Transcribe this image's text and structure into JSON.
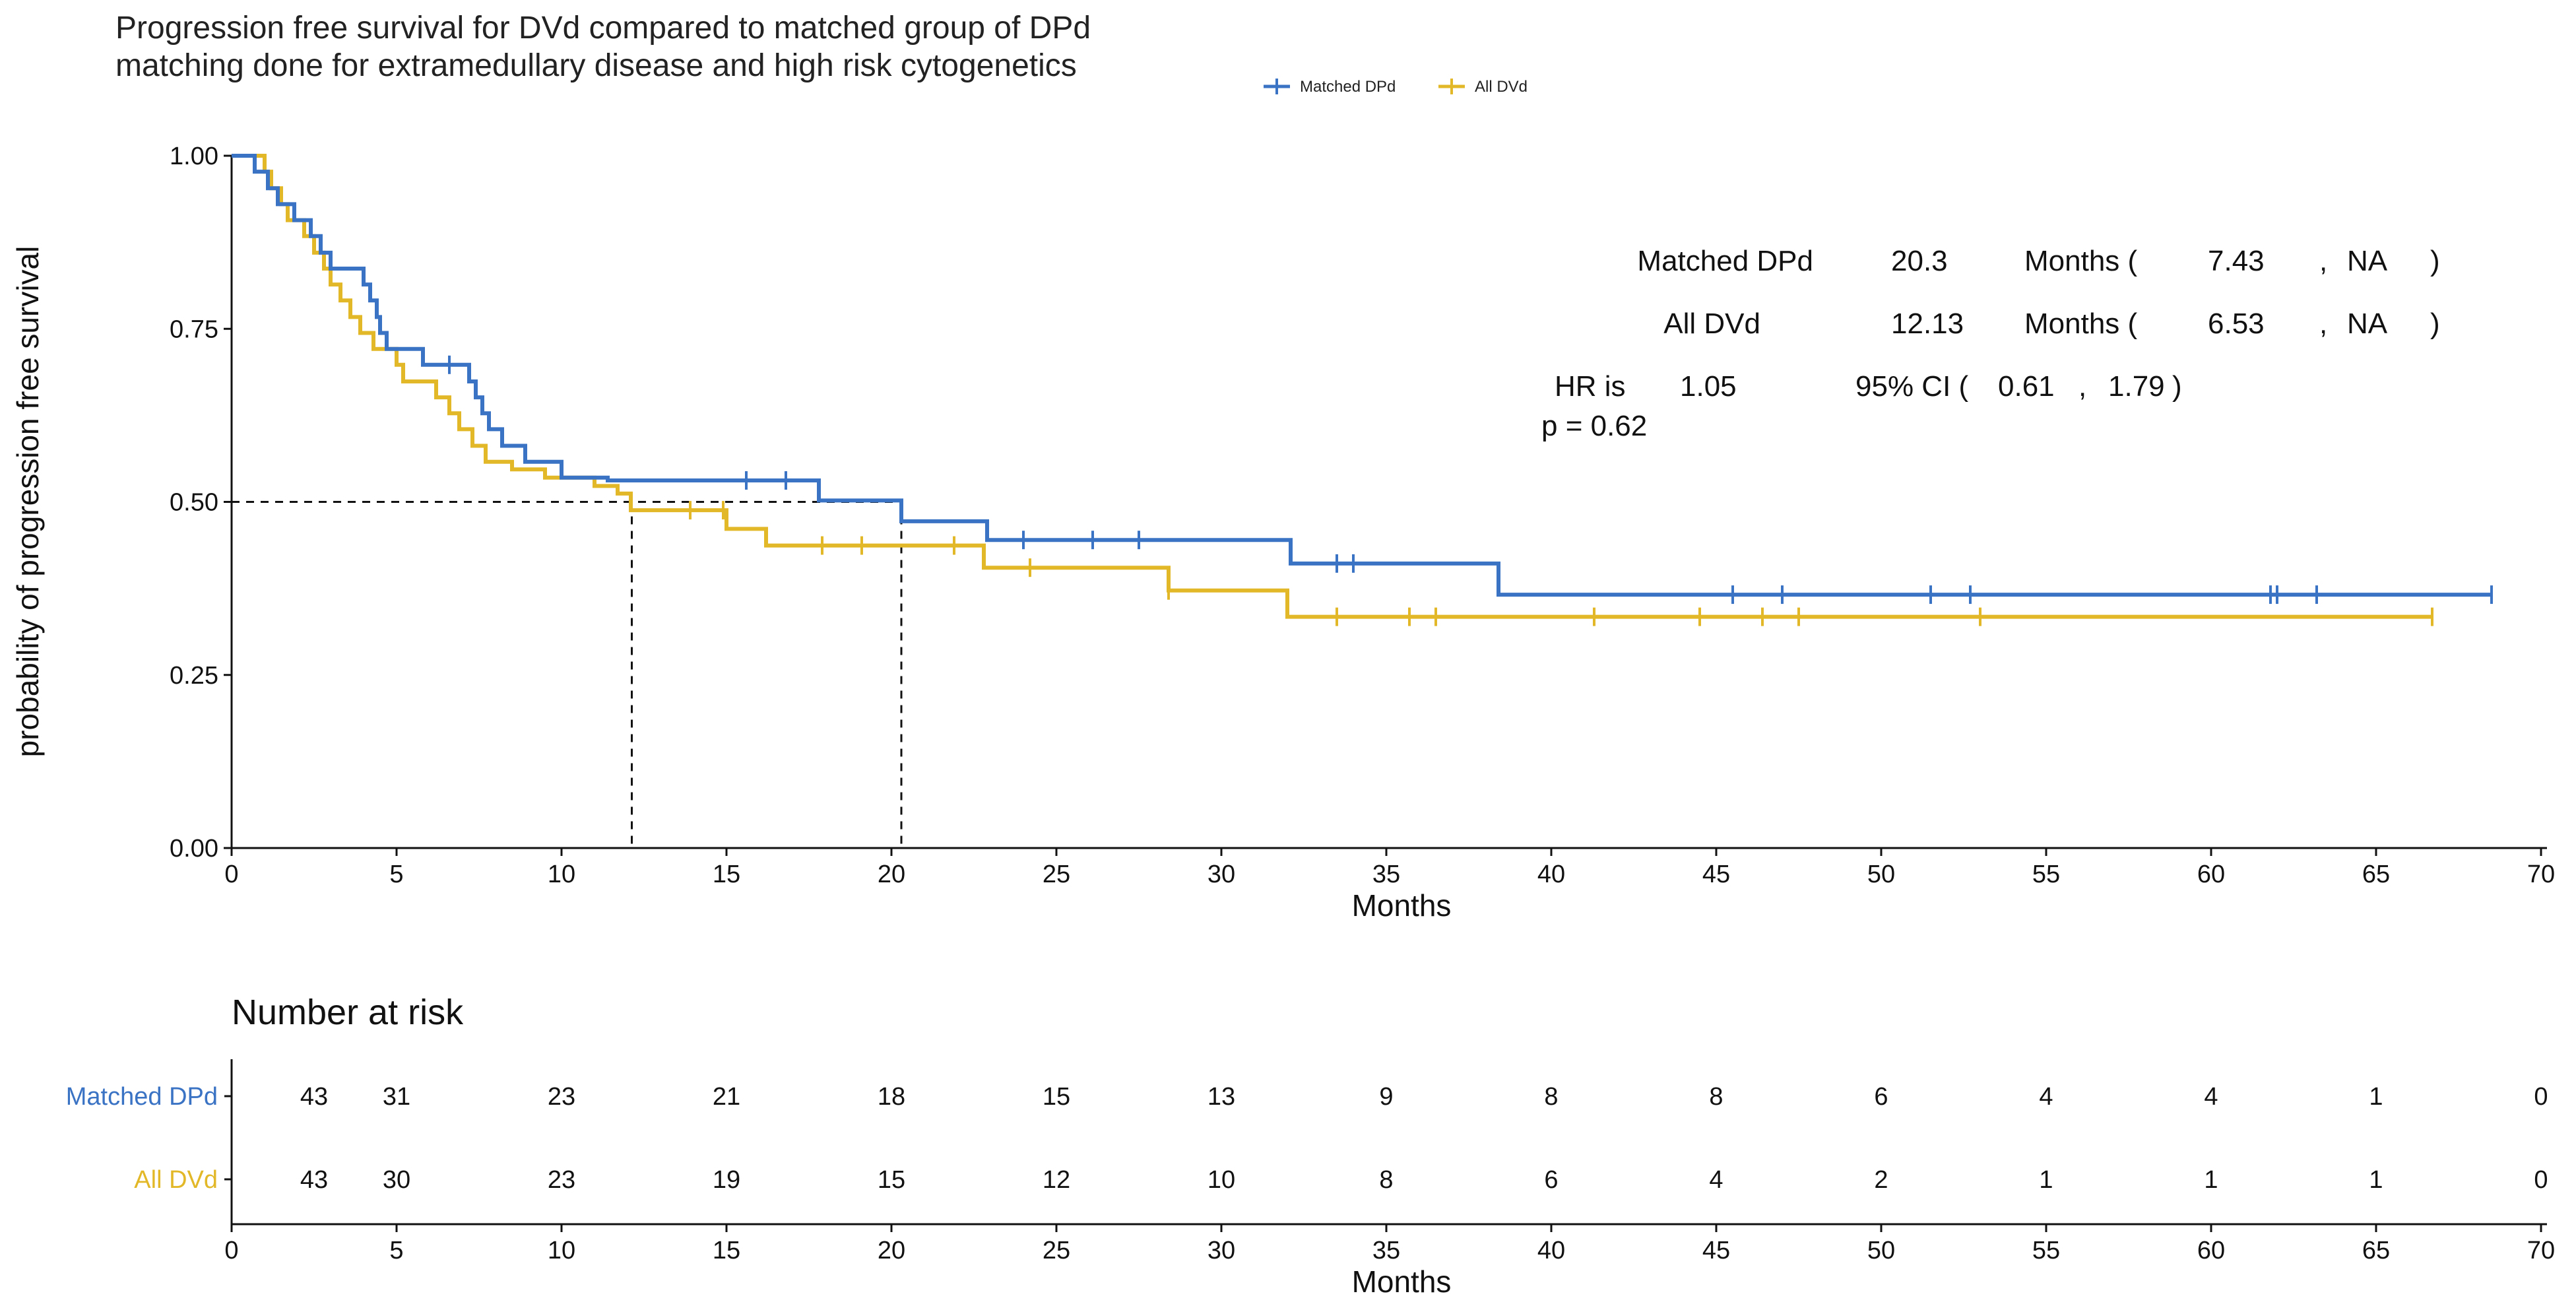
{
  "chart_data": {
    "type": "line",
    "title": [
      "Progression free survival for DVd compared to matched group of DPd",
      "matching done for extramedullary disease and high risk cytogenetics"
    ],
    "xlabel": "Months",
    "ylabel": "probability of progression free survival",
    "xlim": [
      0,
      70
    ],
    "ylim": [
      0,
      1
    ],
    "x_ticks": [
      0,
      5,
      10,
      15,
      20,
      25,
      30,
      35,
      40,
      45,
      50,
      55,
      60,
      65,
      70
    ],
    "x_tick_labels": [
      "0",
      "5",
      "10",
      "15",
      "20",
      "25",
      "30",
      "35",
      "40",
      "45",
      "50",
      "55",
      "60",
      "65",
      "70"
    ],
    "y_ticks": [
      0,
      0.25,
      0.5,
      0.75,
      1.0
    ],
    "y_tick_labels": [
      "0.00",
      "0.25",
      "0.50",
      "0.75",
      "1.00"
    ],
    "legend_position": "top-right",
    "median_reference": {
      "y": 0.5,
      "x": [
        12.13,
        20.3
      ]
    },
    "series": [
      {
        "name": "Matched DPd",
        "color": "#3B73C4",
        "steps": [
          [
            0,
            1.0
          ],
          [
            0.7,
            1.0
          ],
          [
            0.7,
            0.977
          ],
          [
            1.1,
            0.977
          ],
          [
            1.1,
            0.953
          ],
          [
            1.4,
            0.953
          ],
          [
            1.4,
            0.93
          ],
          [
            1.9,
            0.93
          ],
          [
            1.9,
            0.907
          ],
          [
            2.4,
            0.907
          ],
          [
            2.4,
            0.884
          ],
          [
            2.7,
            0.884
          ],
          [
            2.7,
            0.86
          ],
          [
            3.0,
            0.86
          ],
          [
            3.0,
            0.837
          ],
          [
            4.0,
            0.837
          ],
          [
            4.0,
            0.814
          ],
          [
            4.2,
            0.814
          ],
          [
            4.2,
            0.791
          ],
          [
            4.4,
            0.791
          ],
          [
            4.4,
            0.767
          ],
          [
            4.5,
            0.767
          ],
          [
            4.5,
            0.744
          ],
          [
            4.7,
            0.744
          ],
          [
            4.7,
            0.721
          ],
          [
            5.8,
            0.721
          ],
          [
            5.8,
            0.698
          ],
          [
            7.2,
            0.698
          ],
          [
            7.2,
            0.674
          ],
          [
            7.4,
            0.674
          ],
          [
            7.4,
            0.651
          ],
          [
            7.6,
            0.651
          ],
          [
            7.6,
            0.628
          ],
          [
            7.8,
            0.628
          ],
          [
            7.8,
            0.605
          ],
          [
            8.2,
            0.605
          ],
          [
            8.2,
            0.581
          ],
          [
            8.9,
            0.581
          ],
          [
            8.9,
            0.558
          ],
          [
            10.0,
            0.558
          ],
          [
            10.0,
            0.535
          ],
          [
            11.4,
            0.535
          ],
          [
            11.4,
            0.531
          ],
          [
            17.8,
            0.531
          ],
          [
            17.8,
            0.502
          ],
          [
            20.3,
            0.502
          ],
          [
            20.3,
            0.472
          ],
          [
            22.9,
            0.472
          ],
          [
            22.9,
            0.445
          ],
          [
            32.1,
            0.445
          ],
          [
            32.1,
            0.411
          ],
          [
            38.4,
            0.411
          ],
          [
            38.4,
            0.366
          ],
          [
            68.5,
            0.366
          ]
        ],
        "censor_x": [
          6.6,
          15.6,
          16.8,
          24.0,
          26.1,
          27.5,
          33.5,
          34.0,
          45.5,
          47.0,
          51.5,
          52.7,
          61.8,
          62.0,
          63.2,
          68.5
        ]
      },
      {
        "name": "All DVd",
        "color": "#E2B829",
        "steps": [
          [
            0,
            1.0
          ],
          [
            1.0,
            1.0
          ],
          [
            1.0,
            0.977
          ],
          [
            1.2,
            0.977
          ],
          [
            1.2,
            0.953
          ],
          [
            1.5,
            0.953
          ],
          [
            1.5,
            0.93
          ],
          [
            1.7,
            0.93
          ],
          [
            1.7,
            0.907
          ],
          [
            2.2,
            0.907
          ],
          [
            2.2,
            0.884
          ],
          [
            2.5,
            0.884
          ],
          [
            2.5,
            0.86
          ],
          [
            2.8,
            0.86
          ],
          [
            2.8,
            0.837
          ],
          [
            3.0,
            0.837
          ],
          [
            3.0,
            0.814
          ],
          [
            3.3,
            0.814
          ],
          [
            3.3,
            0.791
          ],
          [
            3.6,
            0.791
          ],
          [
            3.6,
            0.767
          ],
          [
            3.9,
            0.767
          ],
          [
            3.9,
            0.744
          ],
          [
            4.3,
            0.744
          ],
          [
            4.3,
            0.721
          ],
          [
            5.0,
            0.721
          ],
          [
            5.0,
            0.698
          ],
          [
            5.2,
            0.698
          ],
          [
            5.2,
            0.674
          ],
          [
            6.2,
            0.674
          ],
          [
            6.2,
            0.651
          ],
          [
            6.6,
            0.651
          ],
          [
            6.6,
            0.628
          ],
          [
            6.9,
            0.628
          ],
          [
            6.9,
            0.605
          ],
          [
            7.3,
            0.605
          ],
          [
            7.3,
            0.581
          ],
          [
            7.7,
            0.581
          ],
          [
            7.7,
            0.558
          ],
          [
            8.5,
            0.558
          ],
          [
            8.5,
            0.547
          ],
          [
            9.5,
            0.547
          ],
          [
            9.5,
            0.535
          ],
          [
            11.0,
            0.535
          ],
          [
            11.0,
            0.523
          ],
          [
            11.7,
            0.523
          ],
          [
            11.7,
            0.512
          ],
          [
            12.1,
            0.512
          ],
          [
            12.1,
            0.488
          ],
          [
            15.0,
            0.488
          ],
          [
            15.0,
            0.461
          ],
          [
            16.2,
            0.461
          ],
          [
            16.2,
            0.437
          ],
          [
            22.8,
            0.437
          ],
          [
            22.8,
            0.405
          ],
          [
            28.4,
            0.405
          ],
          [
            28.4,
            0.372
          ],
          [
            32.0,
            0.372
          ],
          [
            32.0,
            0.334
          ],
          [
            66.7,
            0.334
          ]
        ],
        "censor_x": [
          13.9,
          14.9,
          17.9,
          19.1,
          21.9,
          24.2,
          28.4,
          33.5,
          35.7,
          36.5,
          41.3,
          44.5,
          46.4,
          47.5,
          53.0,
          66.7
        ]
      }
    ],
    "annotations": {
      "row1": {
        "label": "Matched DPd",
        "median": "20.3",
        "unit": "Months (",
        "lower": "7.43",
        "sep": ",",
        "upper": "NA",
        "close": ")"
      },
      "row2": {
        "label": "All DVd",
        "median": "12.13",
        "unit": "Months (",
        "lower": "6.53",
        "sep": ",",
        "upper": "NA",
        "close": ")"
      },
      "hr": {
        "prefix": "HR is",
        "value": "1.05",
        "ci_label": "95% CI (",
        "lower": "0.61",
        "sep": ",",
        "upper": "1.79",
        "close": ")"
      },
      "p": "p = 0.62"
    },
    "risk_table": {
      "title": "Number at risk",
      "times": [
        2.5,
        5,
        10,
        15,
        20,
        25,
        30,
        35,
        40,
        45,
        50,
        55,
        60,
        65,
        70
      ],
      "rows": [
        {
          "name": "Matched DPd",
          "color": "#3B73C4",
          "values": [
            "43",
            "31",
            "23",
            "21",
            "18",
            "15",
            "13",
            "9",
            "8",
            "8",
            "6",
            "4",
            "4",
            "1",
            "0"
          ]
        },
        {
          "name": "All DVd",
          "color": "#E2B829",
          "values": [
            "43",
            "30",
            "23",
            "19",
            "15",
            "12",
            "10",
            "8",
            "6",
            "4",
            "2",
            "1",
            "1",
            "1",
            "0"
          ]
        }
      ],
      "xlabel": "Months"
    }
  }
}
